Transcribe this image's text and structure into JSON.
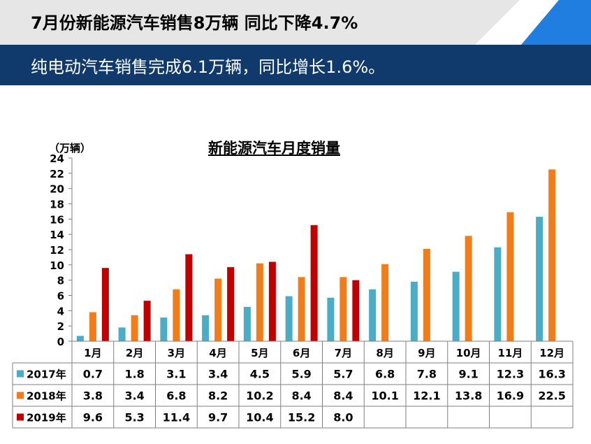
{
  "header": {
    "title": "7月份新能源汽车销售8万辆 同比下降4.7%",
    "subtitle": "纯电动汽车销售完成6.1万辆，同比增长1.6%。"
  },
  "colors": {
    "banner_gray": "#e6e6e6",
    "banner_navy": "#0f3a6b",
    "banner_blue": "#1f7ee0"
  },
  "chart_data": {
    "type": "bar",
    "title": "新能源汽车月度销量",
    "unit": "（万辆）",
    "categories": [
      "1月",
      "2月",
      "3月",
      "4月",
      "5月",
      "6月",
      "7月",
      "8月",
      "9月",
      "10月",
      "11月",
      "12月"
    ],
    "ylim": [
      0,
      24
    ],
    "yticks": [
      0,
      2,
      4,
      6,
      8,
      10,
      12,
      14,
      16,
      18,
      20,
      22,
      24
    ],
    "series": [
      {
        "name": "2017年",
        "color": "#4bacc6",
        "values": [
          0.7,
          1.8,
          3.1,
          3.4,
          4.5,
          5.9,
          5.7,
          6.8,
          7.8,
          9.1,
          12.3,
          16.3
        ]
      },
      {
        "name": "2018年",
        "color": "#f07d1a",
        "values": [
          3.8,
          3.4,
          6.8,
          8.2,
          10.2,
          8.4,
          8.4,
          10.1,
          12.1,
          13.8,
          16.9,
          22.5
        ]
      },
      {
        "name": "2019年",
        "color": "#c00000",
        "values": [
          9.6,
          5.3,
          11.4,
          9.7,
          10.4,
          15.2,
          8.0,
          null,
          null,
          null,
          null,
          null
        ]
      }
    ],
    "table": true,
    "legend": "table-left",
    "grid": false
  }
}
